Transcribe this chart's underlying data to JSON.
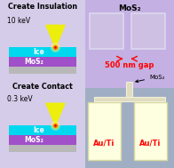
{
  "bg_color": "#d4cce8",
  "left_bg": "#e8e4f4",
  "right_bg_top": "#c8b8e8",
  "right_bg_bottom": "#aab4cc",
  "title_top": "Create Insulation",
  "title_bottom": "Create Contact",
  "energy_top": "10 keV",
  "energy_bottom": "0.3 keV",
  "ice_color": "#00d8f0",
  "mos2_color": "#a050c8",
  "substrate_color": "#b8b8b8",
  "ice_label": "Ice",
  "mos2_label": "MoS₂",
  "gap_label": "500 nm gap",
  "mos2_label_right": "MoS₂",
  "auti_label": "Au/Ti",
  "beam_color": "#f0f000",
  "spot_orange": "#ff5500",
  "spot_red": "#cc0000",
  "mos2_top_label": "MoS₂",
  "sq_face": "#cec0e0",
  "sq_edge": "#ddd8f0",
  "wire_color": "#e0dcc0",
  "pad_color": "#fefee0",
  "pad_edge": "#d8d8a0"
}
